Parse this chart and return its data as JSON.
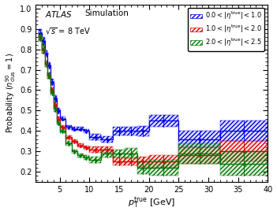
{
  "blue_edges": [
    1.5,
    2.0,
    2.5,
    3.0,
    3.5,
    4.0,
    4.5,
    5.0,
    6.0,
    7.0,
    8.0,
    9.0,
    10.0,
    12.0,
    14.0,
    16.0,
    18.0,
    20.0,
    25.0,
    32.0,
    40.0
  ],
  "blue_values": [
    0.88,
    0.84,
    0.78,
    0.72,
    0.64,
    0.56,
    0.5,
    0.46,
    0.42,
    0.41,
    0.41,
    0.4,
    0.37,
    0.36,
    0.4,
    0.4,
    0.4,
    0.45,
    0.36,
    0.4
  ],
  "blue_errors": [
    0.02,
    0.02,
    0.015,
    0.015,
    0.015,
    0.015,
    0.015,
    0.01,
    0.01,
    0.01,
    0.01,
    0.01,
    0.015,
    0.015,
    0.02,
    0.02,
    0.025,
    0.03,
    0.04,
    0.05
  ],
  "red_edges": [
    1.5,
    2.0,
    2.5,
    3.0,
    3.5,
    4.0,
    4.5,
    5.0,
    6.0,
    7.0,
    8.0,
    9.0,
    10.0,
    12.0,
    14.0,
    16.0,
    18.0,
    20.0,
    25.0,
    32.0,
    40.0
  ],
  "red_values": [
    0.86,
    0.8,
    0.73,
    0.67,
    0.6,
    0.53,
    0.46,
    0.42,
    0.37,
    0.35,
    0.33,
    0.32,
    0.31,
    0.31,
    0.25,
    0.25,
    0.25,
    0.25,
    0.28,
    0.3
  ],
  "red_errors": [
    0.02,
    0.02,
    0.015,
    0.015,
    0.015,
    0.015,
    0.01,
    0.01,
    0.01,
    0.01,
    0.01,
    0.01,
    0.015,
    0.015,
    0.02,
    0.02,
    0.025,
    0.03,
    0.04,
    0.05
  ],
  "green_edges": [
    1.5,
    2.0,
    2.5,
    3.0,
    3.5,
    4.0,
    4.5,
    5.0,
    6.0,
    7.0,
    8.0,
    9.0,
    10.0,
    12.0,
    14.0,
    16.0,
    18.0,
    20.0,
    25.0,
    32.0,
    40.0
  ],
  "green_values": [
    0.86,
    0.8,
    0.73,
    0.67,
    0.59,
    0.51,
    0.44,
    0.4,
    0.34,
    0.3,
    0.28,
    0.27,
    0.26,
    0.29,
    0.29,
    0.29,
    0.22,
    0.22,
    0.29,
    0.24
  ],
  "green_errors": [
    0.02,
    0.02,
    0.015,
    0.015,
    0.015,
    0.015,
    0.01,
    0.01,
    0.01,
    0.01,
    0.01,
    0.01,
    0.015,
    0.02,
    0.02,
    0.025,
    0.03,
    0.04,
    0.05,
    0.06
  ],
  "blue_color": "#0000ee",
  "red_color": "#dd0000",
  "green_color": "#007700",
  "xlim": [
    1,
    40
  ],
  "ylim": [
    0.15,
    1.02
  ],
  "xticks": [
    5,
    10,
    15,
    20,
    25,
    30,
    35,
    40
  ],
  "yticks": [
    0.2,
    0.3,
    0.4,
    0.5,
    0.6,
    0.7,
    0.8,
    0.9,
    1.0
  ]
}
